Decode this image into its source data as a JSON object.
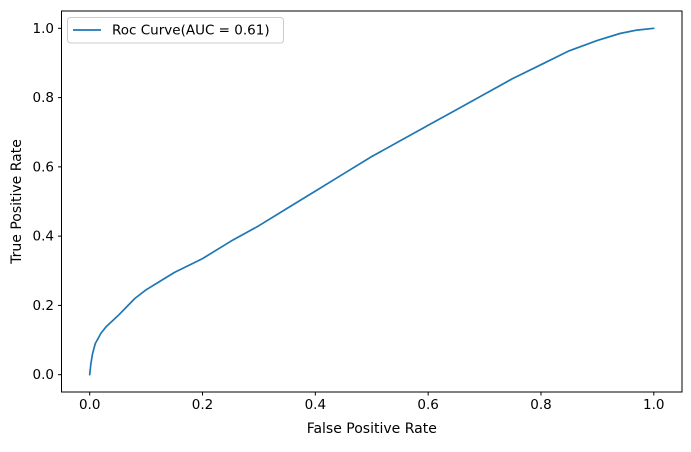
{
  "chart_data": {
    "type": "line",
    "title": "",
    "xlabel": "False Positive Rate",
    "ylabel": "True Positive Rate",
    "xlim": [
      -0.05,
      1.05
    ],
    "ylim": [
      -0.05,
      1.05
    ],
    "xticks": [
      0.0,
      0.2,
      0.4,
      0.6,
      0.8,
      1.0
    ],
    "yticks": [
      0.0,
      0.2,
      0.4,
      0.6,
      0.8,
      1.0
    ],
    "xtick_labels": [
      "0.0",
      "0.2",
      "0.4",
      "0.6",
      "0.8",
      "1.0"
    ],
    "ytick_labels": [
      "0.0",
      "0.2",
      "0.4",
      "0.6",
      "0.8",
      "1.0"
    ],
    "grid": false,
    "legend": {
      "position": "upper left",
      "entries": [
        {
          "label": "Roc Curve(AUC = 0.61)",
          "color": "#1f77b4"
        }
      ]
    },
    "series": [
      {
        "name": "Roc Curve(AUC = 0.61)",
        "auc": 0.61,
        "color": "#1f77b4",
        "x": [
          0.0,
          0.002,
          0.005,
          0.01,
          0.015,
          0.02,
          0.03,
          0.04,
          0.05,
          0.065,
          0.08,
          0.1,
          0.12,
          0.15,
          0.2,
          0.25,
          0.3,
          0.35,
          0.4,
          0.45,
          0.5,
          0.55,
          0.6,
          0.65,
          0.7,
          0.75,
          0.8,
          0.85,
          0.9,
          0.94,
          0.97,
          1.0
        ],
        "y": [
          0.0,
          0.03,
          0.06,
          0.09,
          0.105,
          0.12,
          0.14,
          0.155,
          0.17,
          0.195,
          0.22,
          0.245,
          0.265,
          0.295,
          0.335,
          0.385,
          0.43,
          0.48,
          0.53,
          0.58,
          0.63,
          0.675,
          0.72,
          0.765,
          0.81,
          0.855,
          0.895,
          0.935,
          0.965,
          0.985,
          0.995,
          1.0
        ]
      }
    ],
    "colors": {
      "line": "#1f77b4",
      "spine": "#000000",
      "legend_border": "#cccccc",
      "background": "#ffffff"
    }
  }
}
